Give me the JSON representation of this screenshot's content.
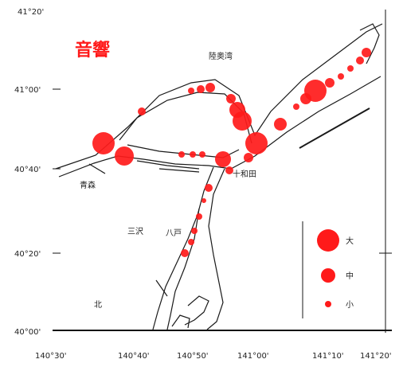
{
  "map": {
    "title": "音響",
    "colors": {
      "bubble": "#ff1a1a",
      "coast": "#1a1a1a",
      "title": "#ff1a1a"
    },
    "top_left_label": "41°20'",
    "y_axis": [
      "41°00'",
      "40°40'",
      "40°20'",
      "40°00'"
    ],
    "x_axis": [
      "140°30'",
      "140°40'",
      "140°50'",
      "141°00'",
      "141°10'",
      "141°20'"
    ],
    "place_labels": [
      "陸奥湾",
      "青森",
      "十和田",
      "三沢",
      "北",
      "八戸"
    ],
    "legend": {
      "labels": [
        "大",
        "中",
        "小"
      ]
    }
  }
}
